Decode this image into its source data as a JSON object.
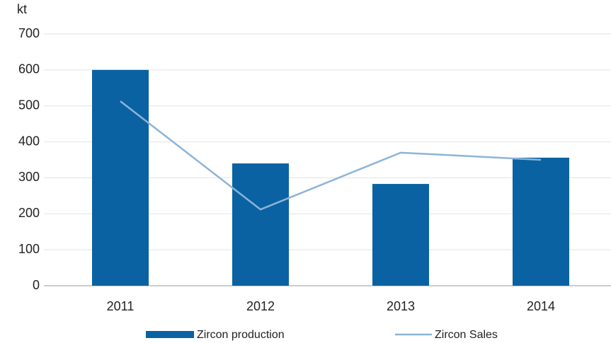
{
  "chart_data": {
    "type": "bar_line",
    "y_label": "kt",
    "categories": [
      "2011",
      "2012",
      "2013",
      "2014"
    ],
    "series": [
      {
        "name": "Zircon production",
        "type": "bar",
        "color": "#0a62a3",
        "values": [
          600,
          340,
          283,
          356
        ]
      },
      {
        "name": "Zircon Sales",
        "type": "line",
        "color": "#8db4d8",
        "values": [
          513,
          212,
          370,
          350
        ]
      }
    ],
    "ylim": [
      0,
      700
    ],
    "yticks": [
      0,
      100,
      200,
      300,
      400,
      500,
      600,
      700
    ],
    "grid": true,
    "legend": "bottom"
  }
}
